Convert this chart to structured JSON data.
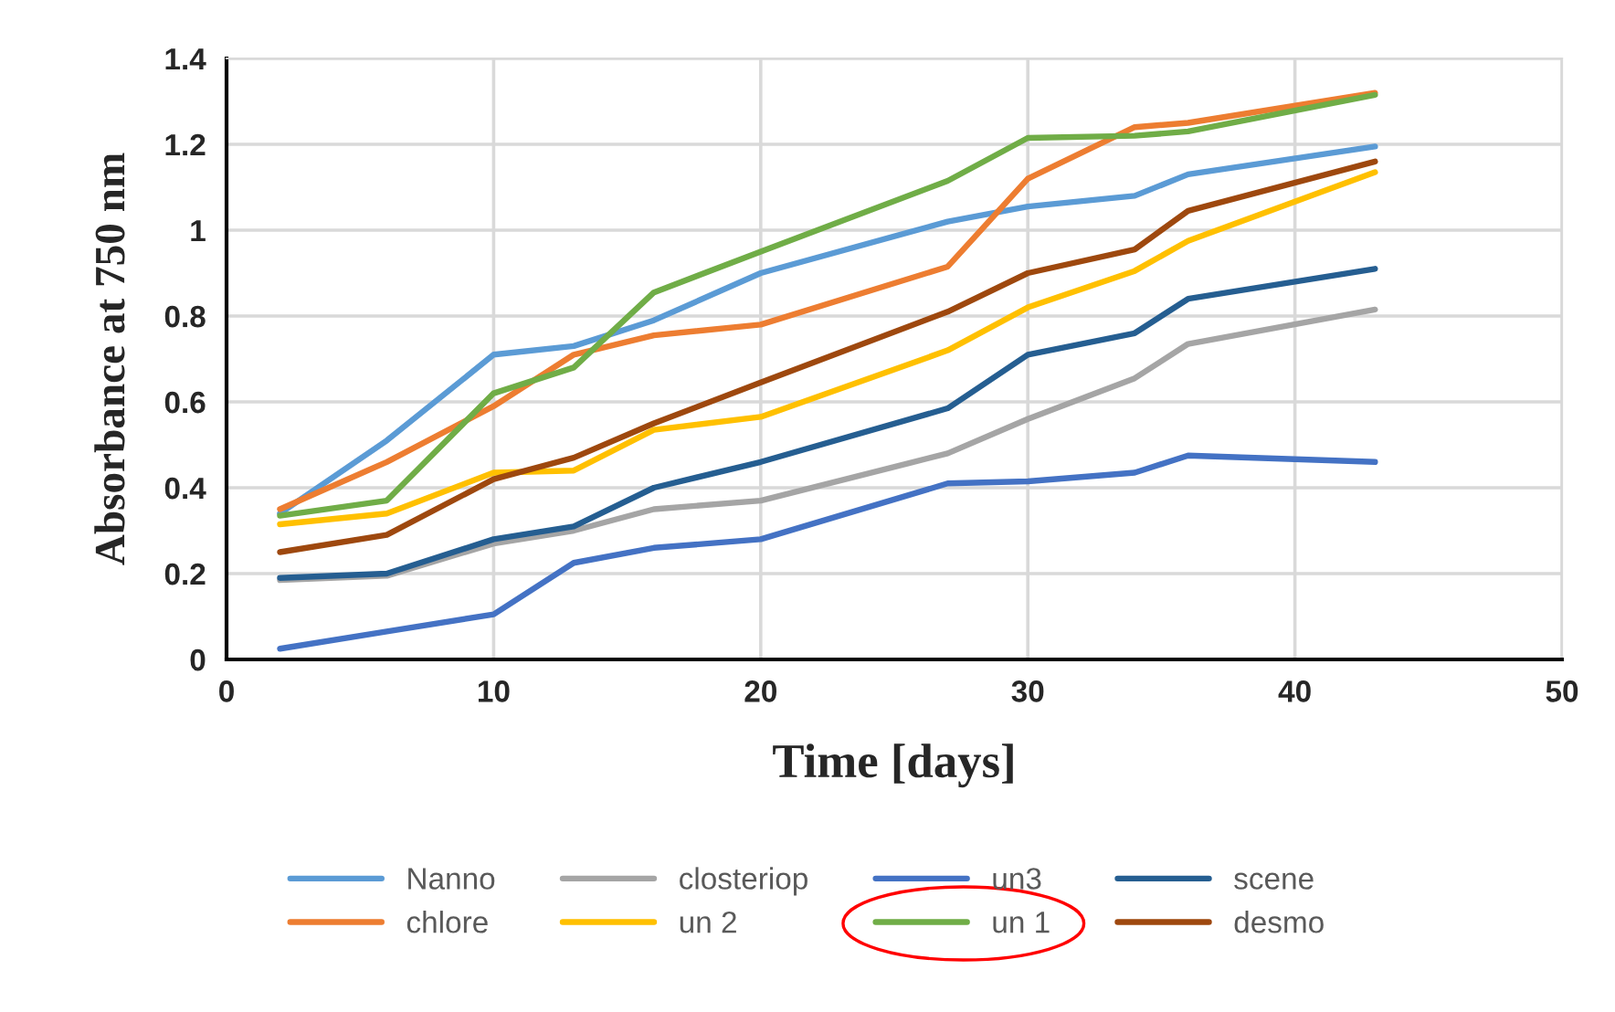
{
  "chart_data": {
    "type": "line",
    "xlabel": "Time [days]",
    "ylabel": "Absorbance at 750 nm",
    "x": [
      2,
      6,
      10,
      13,
      16,
      20,
      27,
      30,
      34,
      36,
      43
    ],
    "xlim": [
      0,
      50
    ],
    "xticks": [
      0,
      10,
      20,
      30,
      40,
      50
    ],
    "ylim": [
      0,
      1.4
    ],
    "yticks": [
      0,
      0.2,
      0.4,
      0.6,
      0.8,
      1,
      1.2,
      1.4
    ],
    "grid": true,
    "legend": "bottom",
    "marker": "none",
    "line_style": "solid",
    "series": [
      {
        "name": "Nanno",
        "color": "#5b9bd5",
        "values": [
          0.34,
          0.51,
          0.71,
          0.73,
          0.79,
          0.9,
          1.02,
          1.055,
          1.08,
          1.13,
          1.195
        ]
      },
      {
        "name": "chlore",
        "color": "#ed7d31",
        "values": [
          0.35,
          0.46,
          0.59,
          0.71,
          0.755,
          0.78,
          0.915,
          1.12,
          1.24,
          1.25,
          1.32
        ]
      },
      {
        "name": "closteriop",
        "color": "#a5a5a5",
        "values": [
          0.185,
          0.195,
          0.27,
          0.3,
          0.35,
          0.37,
          0.48,
          0.56,
          0.655,
          0.735,
          0.815
        ]
      },
      {
        "name": "un 2",
        "color": "#ffc000",
        "values": [
          0.315,
          0.34,
          0.435,
          0.44,
          0.535,
          0.565,
          0.72,
          0.82,
          0.905,
          0.975,
          1.135
        ]
      },
      {
        "name": "un3",
        "color": "#4472c4",
        "values": [
          0.025,
          0.065,
          0.105,
          0.225,
          0.26,
          0.28,
          0.41,
          0.415,
          0.435,
          0.475,
          0.46
        ]
      },
      {
        "name": "un 1",
        "color": "#70ad47",
        "values": [
          0.335,
          0.37,
          0.62,
          0.68,
          0.855,
          0.95,
          1.115,
          1.215,
          1.22,
          1.23,
          1.315
        ]
      },
      {
        "name": "scene",
        "color": "#255e91",
        "values": [
          0.19,
          0.2,
          0.28,
          0.31,
          0.4,
          0.46,
          0.585,
          0.71,
          0.76,
          0.84,
          0.91
        ]
      },
      {
        "name": "desmo",
        "color": "#9e480e",
        "values": [
          0.25,
          0.29,
          0.42,
          0.47,
          0.55,
          0.645,
          0.81,
          0.9,
          0.955,
          1.045,
          1.16
        ]
      }
    ]
  }
}
